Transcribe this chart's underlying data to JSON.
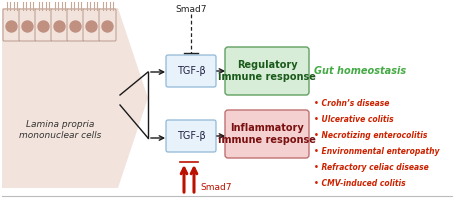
{
  "bg_color": "#ffffff",
  "cell_bg": "#f2e4dc",
  "cell_stripe_color": "#c8a898",
  "cell_dot_color": "#c09080",
  "cell_border_color": "#b09080",
  "arrow_color": "#1a1a1a",
  "red_arrow_color": "#bb1100",
  "tgfb_box_facecolor": "#e8f2fa",
  "tgfb_box_edgecolor": "#90b8d8",
  "regulatory_box_facecolor": "#d8edd8",
  "regulatory_box_edgecolor": "#60a060",
  "inflammatory_box_facecolor": "#f5d0d0",
  "inflammatory_box_edgecolor": "#c07070",
  "gut_homeostasis_color": "#44aa44",
  "disease_color": "#cc2200",
  "smad7_top_color": "#222222",
  "smad7_bottom_color": "#bb1100",
  "cell_label": "Lamina propria\nmononuclear cells",
  "smad7_top_label": "Smad7",
  "smad7_bottom_label": "Smad7",
  "tgfb_label": "TGF-β",
  "regulatory_label": "Regulatory\nimmune response",
  "inflammatory_label": "Inflammatory\nimmune response",
  "gut_homeostasis_label": "Gut homeostasis",
  "diseases": [
    "Crohn’s disease",
    "Ulcerative colitis",
    "Necrotizing enterocolitis",
    "Environmental enteropathy",
    "Refractory celiac disease",
    "CMV-induced colitis"
  ]
}
